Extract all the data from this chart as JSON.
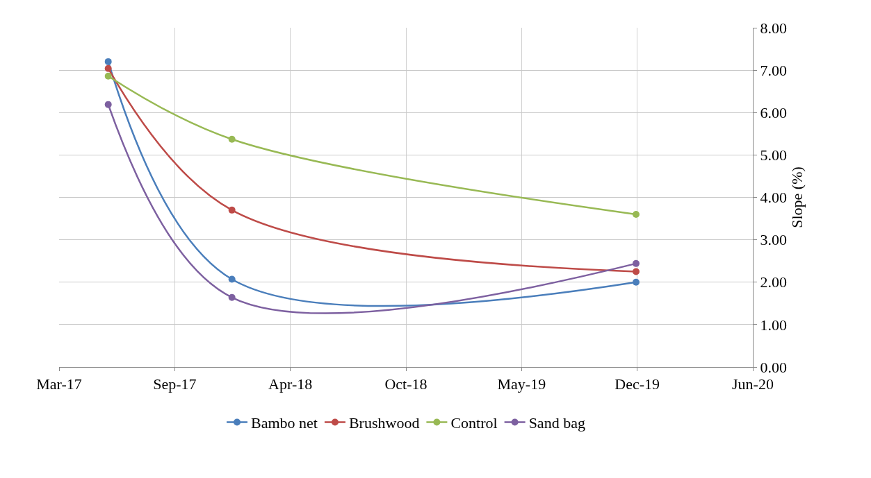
{
  "chart_data": {
    "type": "line",
    "ylabel": "Slope (%)",
    "x": [
      "2017-06-01",
      "2018-01-01",
      "2019-12-01"
    ],
    "series": [
      {
        "name": "Bambo net",
        "color": "#4a7ebb",
        "values": [
          7.2,
          2.07,
          2.0
        ]
      },
      {
        "name": "Brushwood",
        "color": "#be4b48",
        "values": [
          7.04,
          3.7,
          2.25
        ]
      },
      {
        "name": "Control",
        "color": "#98b954",
        "values": [
          6.86,
          5.37,
          3.6
        ]
      },
      {
        "name": "Sand bag",
        "color": "#7d60a0",
        "values": [
          6.19,
          1.64,
          2.44
        ]
      }
    ],
    "xlim": [
      "2017-03-08",
      "2020-06-20"
    ],
    "xticks": [
      {
        "value": "2017-03-08",
        "label": "Mar-17"
      },
      {
        "value": "2017-09-24",
        "label": "Sep-17"
      },
      {
        "value": "2018-04-12",
        "label": "Apr-18"
      },
      {
        "value": "2018-10-29",
        "label": "Oct-18"
      },
      {
        "value": "2019-05-17",
        "label": "May-19"
      },
      {
        "value": "2019-12-03",
        "label": "Dec-19"
      },
      {
        "value": "2020-06-20",
        "label": "Jun-20"
      }
    ],
    "ylim": [
      0,
      8
    ],
    "yticks": [
      {
        "value": 0,
        "label": "0.00"
      },
      {
        "value": 1,
        "label": "1.00"
      },
      {
        "value": 2,
        "label": "2.00"
      },
      {
        "value": 3,
        "label": "3.00"
      },
      {
        "value": 4,
        "label": "4.00"
      },
      {
        "value": 5,
        "label": "5.00"
      },
      {
        "value": 6,
        "label": "6.00"
      },
      {
        "value": 7,
        "label": "7.00"
      },
      {
        "value": 8,
        "label": "8.00"
      }
    ],
    "grid": true,
    "legend": "bottom",
    "marker": "circle",
    "line_style": "solid"
  }
}
